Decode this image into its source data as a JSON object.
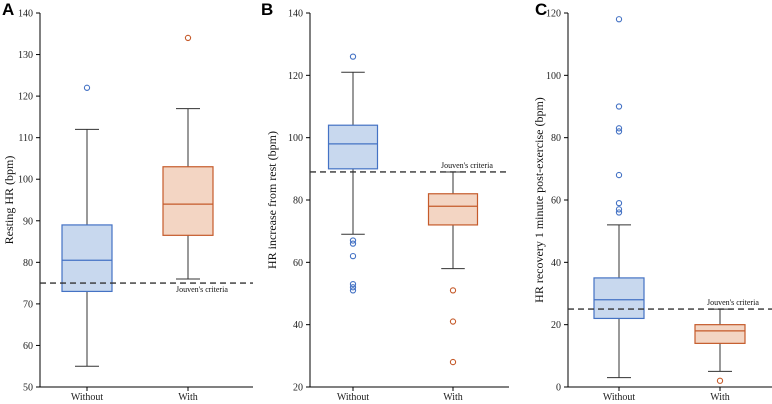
{
  "colors": {
    "without_fill": "#c8d8ee",
    "without_stroke": "#4472c4",
    "with_fill": "#f3d5c3",
    "with_stroke": "#c55a2a",
    "whisker": "#333333",
    "criteria_line": "#333333"
  },
  "chart_data": [
    {
      "type": "box",
      "panel": "A",
      "ylabel": "Resting HR (bpm)",
      "ylim": [
        50,
        140
      ],
      "yticks": [
        50,
        60,
        70,
        80,
        90,
        100,
        110,
        120,
        130,
        140
      ],
      "categories": [
        "Without",
        "With"
      ],
      "criteria": {
        "value": 75,
        "label": "Jouven's criteria"
      },
      "series": [
        {
          "name": "Without",
          "whislo": 55,
          "q1": 73,
          "median": 80.5,
          "q3": 89,
          "whishi": 112,
          "fliers": [
            122
          ]
        },
        {
          "name": "With",
          "whislo": 76,
          "q1": 86.5,
          "median": 94,
          "q3": 103,
          "whishi": 117,
          "fliers": [
            134
          ]
        }
      ]
    },
    {
      "type": "box",
      "panel": "B",
      "ylabel": "HR increase from rest (bpm)",
      "ylim": [
        20,
        140
      ],
      "yticks": [
        20,
        40,
        60,
        80,
        100,
        120,
        140
      ],
      "categories": [
        "Without",
        "With"
      ],
      "criteria": {
        "value": 89,
        "label": "Jouven's criteria"
      },
      "series": [
        {
          "name": "Without",
          "whislo": 69,
          "q1": 90,
          "median": 98,
          "q3": 104,
          "whishi": 121,
          "fliers": [
            51,
            52,
            53,
            62,
            66,
            67,
            126
          ]
        },
        {
          "name": "With",
          "whislo": 58,
          "q1": 72,
          "median": 78,
          "q3": 82,
          "whishi": 89,
          "fliers": [
            28,
            41,
            51
          ]
        }
      ]
    },
    {
      "type": "box",
      "panel": "C",
      "ylabel": "HR recovery 1 minute post-exercise (bpm)",
      "ylim": [
        0,
        120
      ],
      "yticks": [
        0,
        20,
        40,
        60,
        80,
        100,
        120
      ],
      "categories": [
        "Without",
        "With"
      ],
      "criteria": {
        "value": 25,
        "label": "Jouven's criteria"
      },
      "series": [
        {
          "name": "Without",
          "whislo": 3,
          "q1": 22,
          "median": 28,
          "q3": 35,
          "whishi": 52,
          "fliers": [
            56,
            57,
            59,
            68,
            82,
            83,
            90,
            118
          ]
        },
        {
          "name": "With",
          "whislo": 5,
          "q1": 14,
          "median": 18,
          "q3": 20,
          "whishi": 25,
          "fliers": [
            2
          ]
        }
      ]
    }
  ]
}
